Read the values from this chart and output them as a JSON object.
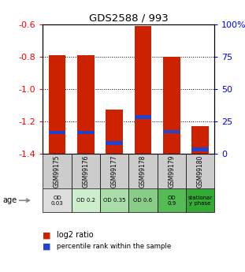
{
  "title": "GDS2588 / 993",
  "samples": [
    "GSM99175",
    "GSM99176",
    "GSM99177",
    "GSM99178",
    "GSM99179",
    "GSM99180"
  ],
  "bar_tops": [
    -0.79,
    -0.79,
    -1.13,
    -0.61,
    -0.8,
    -1.23
  ],
  "bar_bottoms": [
    -1.4,
    -1.4,
    -1.4,
    -1.4,
    -1.4,
    -1.4
  ],
  "blue_marker_pos": [
    -1.27,
    -1.27,
    -1.335,
    -1.175,
    -1.265,
    -1.375
  ],
  "ylim_min": -1.4,
  "ylim_max": -0.6,
  "yticks_left": [
    -0.6,
    -0.8,
    -1.0,
    -1.2,
    -1.4
  ],
  "bar_color": "#cc2200",
  "blue_color": "#2244cc",
  "age_labels": [
    "OD\n0.03",
    "OD 0.2",
    "OD 0.35",
    "OD 0.6",
    "OD\n0.9",
    "stationar\ny phase"
  ],
  "age_bg_colors": [
    "#dddddd",
    "#cceecc",
    "#aaddaa",
    "#88cc88",
    "#55bb55",
    "#33aa33"
  ],
  "sample_bg_color": "#cccccc",
  "legend_red_label": "log2 ratio",
  "legend_blue_label": "percentile rank within the sample",
  "right_ticks_pct": [
    0,
    25,
    50,
    75,
    100
  ],
  "gridline_y": [
    -0.8,
    -1.0,
    -1.2
  ]
}
